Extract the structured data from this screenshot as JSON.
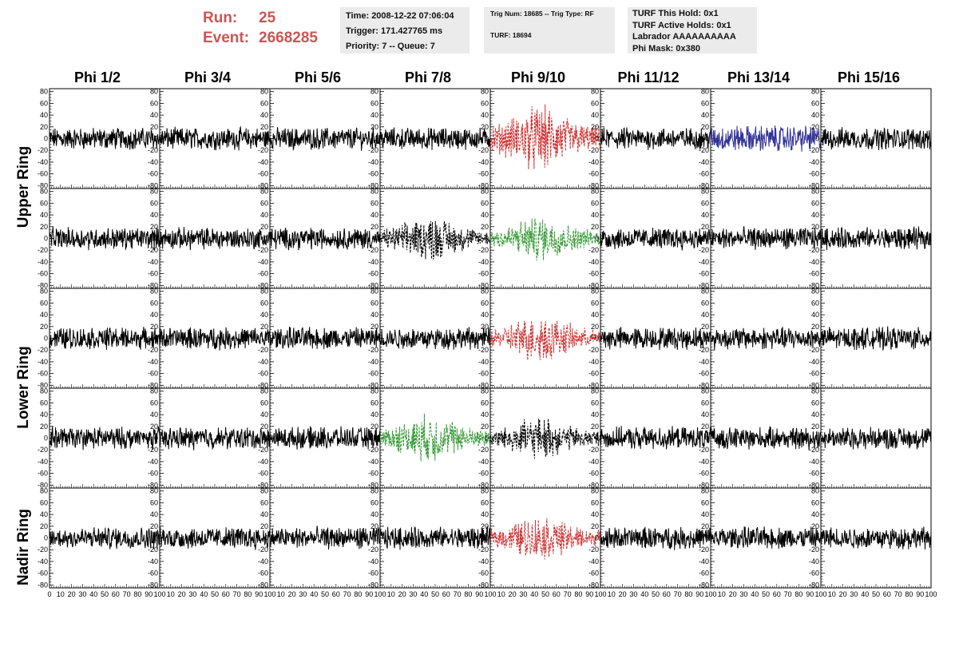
{
  "header": {
    "run_label": "Run:",
    "run_value": "25",
    "event_label": "Event:",
    "event_value": "2668285",
    "title_color": "#cc5555"
  },
  "info": {
    "time": "Time: 2008-12-22 07:06:04",
    "trigger": "Trigger: 171.427765 ms",
    "priority": "Priority: 7 -- Queue: 7",
    "trig_num": "Trig Num: 18685 -- Trig Type: RF",
    "turf": "TURF: 18694",
    "turf_this_hold": "TURF This Hold: 0x1",
    "turf_active_holds": "TURF Active Holds: 0x1",
    "labrador": "Labrador AAAAAAAAAA",
    "phi_mask": "Phi Mask: 0x380"
  },
  "columns": [
    "Phi 1/2",
    "Phi 3/4",
    "Phi 5/6",
    "Phi 7/8",
    "Phi 9/10",
    "Phi 11/12",
    "Phi 13/14",
    "Phi 15/16"
  ],
  "rows": [
    "Upper Ring",
    "Lower Ring",
    "Nadir Ring"
  ],
  "chart_data": {
    "type": "line",
    "title": "",
    "xlabel": "",
    "ylabel": "",
    "xlim": [
      0,
      100
    ],
    "ylim": [
      -85,
      85
    ],
    "y_ticks": [
      -80,
      -60,
      -40,
      -20,
      0,
      20,
      40,
      60,
      80
    ],
    "x_ticks": [
      0,
      10,
      20,
      30,
      40,
      50,
      60,
      70,
      80,
      90,
      100
    ],
    "grid": false,
    "panel_rows": 5,
    "panel_cols": 8,
    "waveform_amplitude": 15,
    "highlighted_panels": [
      {
        "row": 0,
        "col": 4,
        "color": "#cc3333",
        "style": "dashed",
        "amplitude": 45
      },
      {
        "row": 0,
        "col": 6,
        "color": "#333399",
        "style": "solid",
        "amplitude": 18
      },
      {
        "row": 1,
        "col": 3,
        "color": "#000000",
        "style": "dashed",
        "amplitude": 30
      },
      {
        "row": 1,
        "col": 4,
        "color": "#339933",
        "style": "dashed",
        "amplitude": 30
      },
      {
        "row": 2,
        "col": 4,
        "color": "#cc3333",
        "style": "dashed",
        "amplitude": 32
      },
      {
        "row": 3,
        "col": 3,
        "color": "#339933",
        "style": "dashed",
        "amplitude": 32
      },
      {
        "row": 3,
        "col": 4,
        "color": "#000000",
        "style": "dashed",
        "amplitude": 28
      },
      {
        "row": 4,
        "col": 4,
        "color": "#cc3333",
        "style": "dashed",
        "amplitude": 30
      }
    ]
  }
}
